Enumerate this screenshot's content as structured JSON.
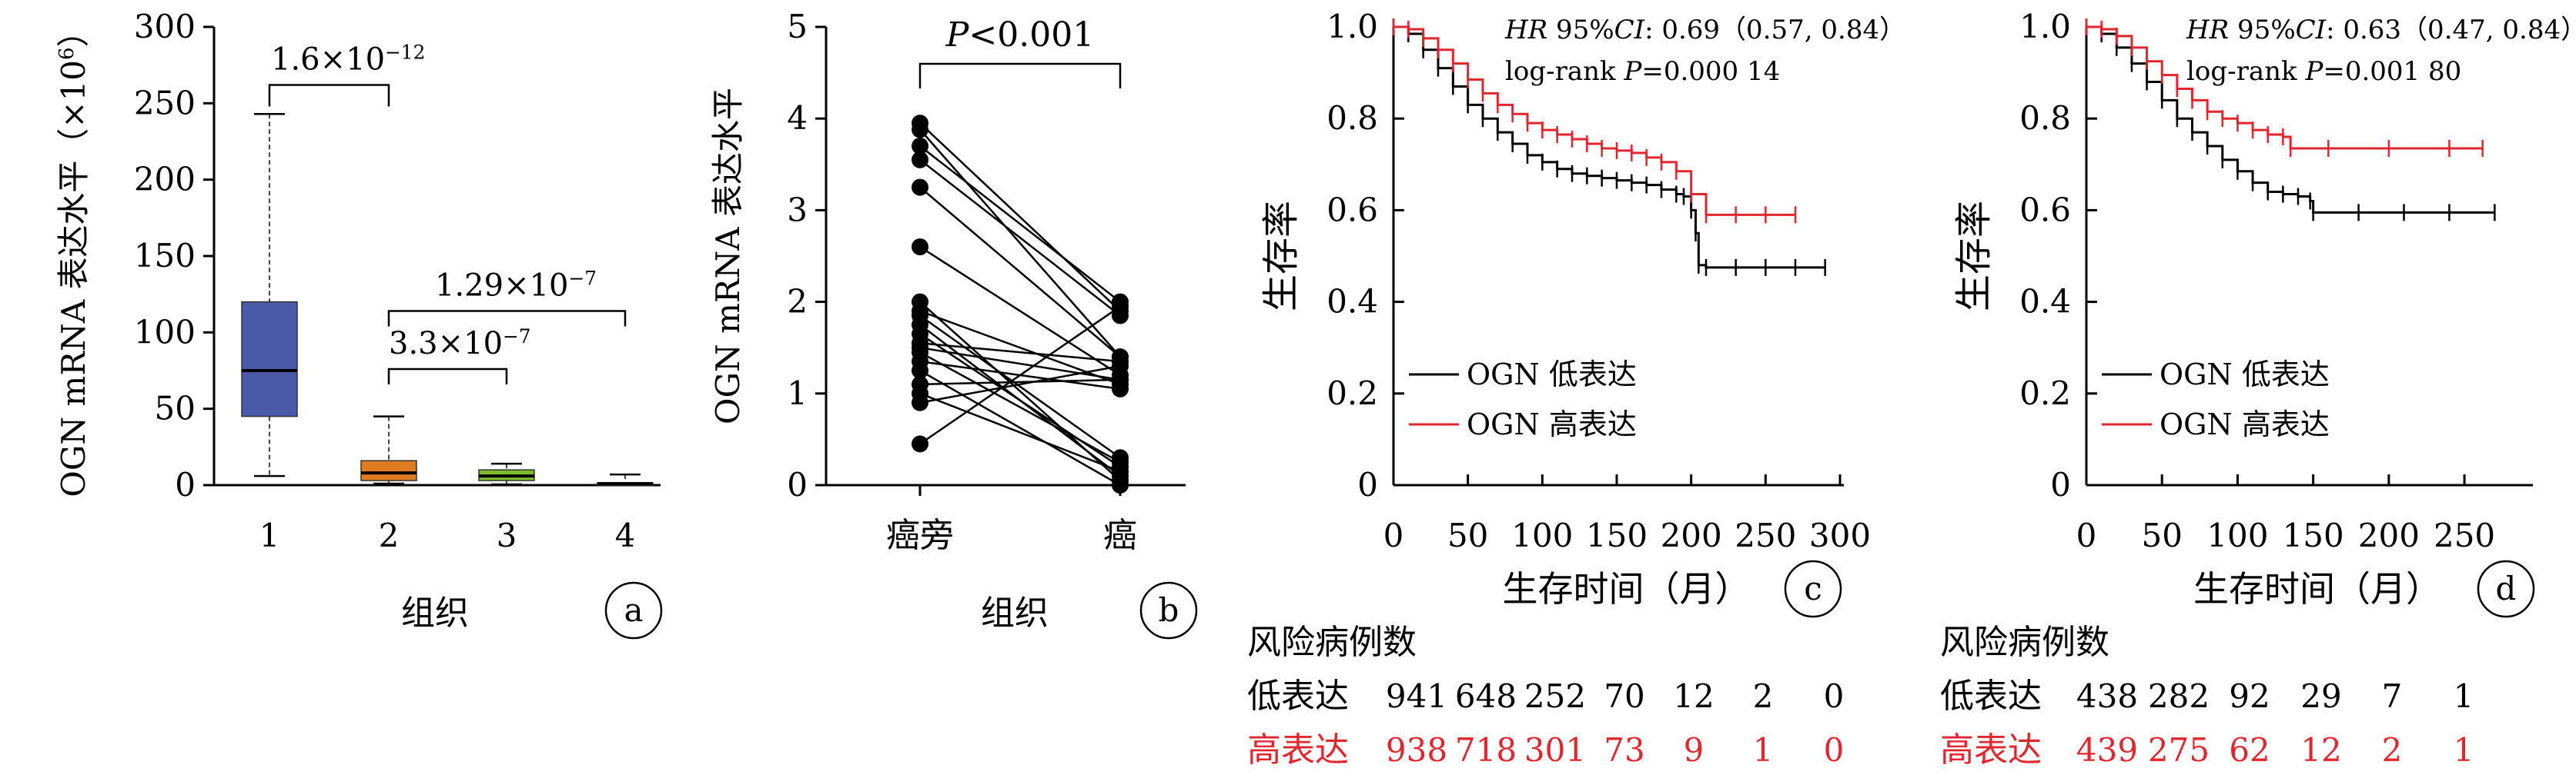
{
  "chart_data": [
    {
      "panel": "a",
      "type": "box",
      "ylabel": "OGN mRNA 表达水平（×10⁶）",
      "xlabel": "组织",
      "ylim": [
        0,
        300
      ],
      "yticks": [
        "0",
        "50",
        "100",
        "150",
        "200",
        "250",
        "300"
      ],
      "categories": [
        "1",
        "2",
        "3",
        "4"
      ],
      "colors": [
        "#4a5aa8",
        "#e07b22",
        "#7dbb2a",
        "#555555"
      ],
      "boxes": [
        {
          "category": "1",
          "min": 6,
          "q1": 45,
          "median": 75,
          "q3": 120,
          "max": 243
        },
        {
          "category": "2",
          "min": 1,
          "q1": 3,
          "median": 8,
          "q3": 16,
          "max": 45
        },
        {
          "category": "3",
          "min": 0.5,
          "q1": 3,
          "median": 6,
          "q3": 10,
          "max": 14
        },
        {
          "category": "4",
          "min": 0,
          "q1": 0.5,
          "median": 1,
          "q3": 1.5,
          "max": 7
        }
      ],
      "annotations": [
        {
          "from": "1",
          "to": "2",
          "label": "1.6×10⁻¹²",
          "y": 262
        },
        {
          "from": "2",
          "to": "3",
          "label": "3.3×10⁻⁷",
          "y": 76
        },
        {
          "from": "2",
          "to": "4",
          "label": "1.29×10⁻⁷",
          "y": 114
        }
      ]
    },
    {
      "panel": "b",
      "type": "paired-line",
      "ylabel": "OGN mRNA 表达水平",
      "xlabel": "组织",
      "ylim": [
        0,
        5
      ],
      "yticks": [
        "0",
        "1",
        "2",
        "3",
        "4",
        "5"
      ],
      "categories": [
        "癌旁",
        "癌"
      ],
      "annotation": "P<0.001",
      "pairs": [
        [
          3.95,
          1.9
        ],
        [
          3.88,
          1.4
        ],
        [
          3.7,
          2.0
        ],
        [
          3.55,
          1.85
        ],
        [
          3.25,
          1.4
        ],
        [
          2.6,
          1.2
        ],
        [
          2.0,
          0.05
        ],
        [
          1.9,
          1.1
        ],
        [
          1.85,
          0.3
        ],
        [
          1.75,
          0.1
        ],
        [
          1.65,
          0.2
        ],
        [
          1.55,
          1.35
        ],
        [
          1.5,
          1.15
        ],
        [
          1.45,
          0.25
        ],
        [
          1.35,
          1.05
        ],
        [
          1.25,
          0.0
        ],
        [
          1.1,
          1.15
        ],
        [
          1.0,
          0.15
        ],
        [
          0.9,
          1.3
        ],
        [
          0.45,
          1.95
        ]
      ]
    },
    {
      "panel": "c",
      "type": "line",
      "subtype": "kaplan-meier",
      "ylabel": "生存率",
      "xlabel": "生存时间（月）",
      "xlim": [
        0,
        300
      ],
      "ylim": [
        0,
        1.0
      ],
      "xticks": [
        "0",
        "50",
        "100",
        "150",
        "200",
        "250",
        "300"
      ],
      "yticks": [
        "0",
        "0.2",
        "0.4",
        "0.6",
        "0.8",
        "1.0"
      ],
      "hr_text": "HR 95%CI: 0.69（0.57, 0.84）",
      "logrank_text": "log-rank P=0.000 14",
      "series": [
        {
          "name": "OGN 低表达",
          "color": "#000000",
          "x": [
            0,
            10,
            20,
            30,
            40,
            50,
            60,
            70,
            80,
            90,
            100,
            110,
            120,
            130,
            140,
            150,
            160,
            170,
            180,
            190,
            195,
            200,
            203,
            205,
            210,
            230,
            250,
            270,
            290
          ],
          "y": [
            1.0,
            0.985,
            0.95,
            0.91,
            0.87,
            0.83,
            0.8,
            0.77,
            0.745,
            0.72,
            0.705,
            0.69,
            0.68,
            0.675,
            0.67,
            0.665,
            0.66,
            0.655,
            0.645,
            0.635,
            0.63,
            0.6,
            0.55,
            0.48,
            0.475,
            0.475,
            0.475,
            0.475,
            0.475
          ]
        },
        {
          "name": "OGN 高表达",
          "color": "#e0262f",
          "x": [
            0,
            10,
            20,
            30,
            40,
            50,
            60,
            70,
            80,
            90,
            100,
            110,
            120,
            130,
            140,
            150,
            160,
            170,
            180,
            190,
            200,
            210,
            230,
            250,
            270
          ],
          "y": [
            1.0,
            0.995,
            0.975,
            0.95,
            0.92,
            0.885,
            0.855,
            0.83,
            0.81,
            0.79,
            0.775,
            0.765,
            0.755,
            0.745,
            0.735,
            0.73,
            0.725,
            0.715,
            0.705,
            0.685,
            0.635,
            0.59,
            0.59,
            0.59,
            0.59
          ]
        }
      ],
      "risk_table": {
        "title": "风险病例数",
        "rows": [
          {
            "label": "低表达",
            "color": "#000000",
            "values": [
              "941",
              "648",
              "252",
              "70",
              "12",
              "2",
              "0"
            ]
          },
          {
            "label": "高表达",
            "color": "#e0262f",
            "values": [
              "938",
              "718",
              "301",
              "73",
              "9",
              "1",
              "0"
            ]
          }
        ]
      }
    },
    {
      "panel": "d",
      "type": "line",
      "subtype": "kaplan-meier",
      "ylabel": "生存率",
      "xlabel": "生存时间（月）",
      "xlim": [
        0,
        280
      ],
      "ylim": [
        0,
        1.0
      ],
      "xticks": [
        "0",
        "50",
        "100",
        "150",
        "200",
        "250"
      ],
      "yticks": [
        "0",
        "0.2",
        "0.4",
        "0.6",
        "0.8",
        "1.0"
      ],
      "hr_text": "HR 95%CI: 0.63（0.47, 0.84）",
      "logrank_text": "log-rank P=0.001 80",
      "series": [
        {
          "name": "OGN 低表达",
          "color": "#000000",
          "x": [
            0,
            10,
            20,
            30,
            40,
            50,
            60,
            70,
            80,
            90,
            100,
            110,
            120,
            130,
            140,
            148,
            150,
            180,
            210,
            240,
            270
          ],
          "y": [
            1.0,
            0.985,
            0.955,
            0.92,
            0.88,
            0.84,
            0.8,
            0.77,
            0.74,
            0.71,
            0.685,
            0.66,
            0.64,
            0.635,
            0.63,
            0.62,
            0.595,
            0.595,
            0.595,
            0.595,
            0.595
          ]
        },
        {
          "name": "OGN 高表达",
          "color": "#e0262f",
          "x": [
            0,
            10,
            20,
            30,
            40,
            50,
            60,
            70,
            80,
            90,
            100,
            110,
            120,
            130,
            135,
            160,
            200,
            240,
            262
          ],
          "y": [
            1.0,
            0.995,
            0.98,
            0.955,
            0.925,
            0.895,
            0.865,
            0.84,
            0.815,
            0.8,
            0.79,
            0.775,
            0.765,
            0.76,
            0.735,
            0.735,
            0.735,
            0.735,
            0.735
          ]
        }
      ],
      "risk_table": {
        "title": "风险病例数",
        "rows": [
          {
            "label": "低表达",
            "color": "#000000",
            "values": [
              "438",
              "282",
              "92",
              "29",
              "7",
              "1"
            ]
          },
          {
            "label": "高表达",
            "color": "#e0262f",
            "values": [
              "439",
              "275",
              "62",
              "12",
              "2",
              "1"
            ]
          }
        ]
      }
    }
  ],
  "panel_labels": [
    "a",
    "b",
    "c",
    "d"
  ]
}
